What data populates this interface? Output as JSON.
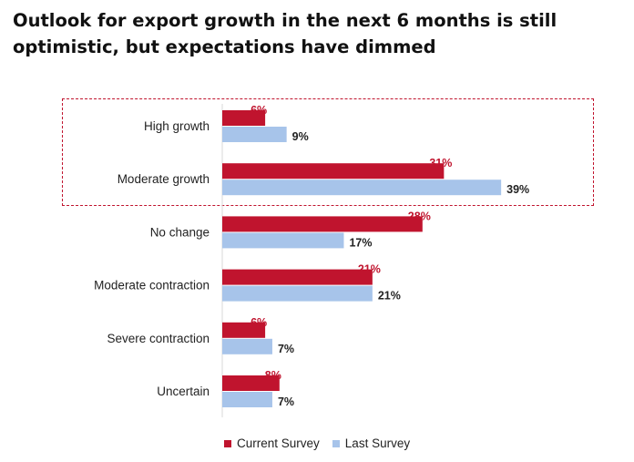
{
  "title": {
    "line1": "Outlook for export growth in the next 6 months is still",
    "line2": "optimistic, but expectations have dimmed"
  },
  "colors": {
    "current": "#c0142e",
    "last": "#a7c4ea",
    "frame": "#c0142e"
  },
  "chart_data": {
    "type": "bar",
    "orientation": "horizontal",
    "title": "Outlook for export growth in the next 6 months is still optimistic, but expectations have dimmed",
    "categories": [
      "High growth",
      "Moderate growth",
      "No change",
      "Moderate contraction",
      "Severe contraction",
      "Uncertain"
    ],
    "series": [
      {
        "name": "Current Survey",
        "values": [
          6,
          31,
          28,
          21,
          6,
          8
        ],
        "labels": [
          "6%",
          "31%",
          "28%",
          "21%",
          "6%",
          "8%"
        ]
      },
      {
        "name": "Last Survey",
        "values": [
          9,
          39,
          17,
          21,
          7,
          7
        ],
        "labels": [
          "9%",
          "39%",
          "17%",
          "21%",
          "7%",
          "7%"
        ]
      }
    ],
    "xlim": [
      0,
      50
    ],
    "grid": false,
    "legend": "bottom",
    "highlighted_categories": [
      "High growth",
      "Moderate growth"
    ]
  },
  "legend": {
    "current": "Current Survey",
    "last": "Last Survey"
  }
}
